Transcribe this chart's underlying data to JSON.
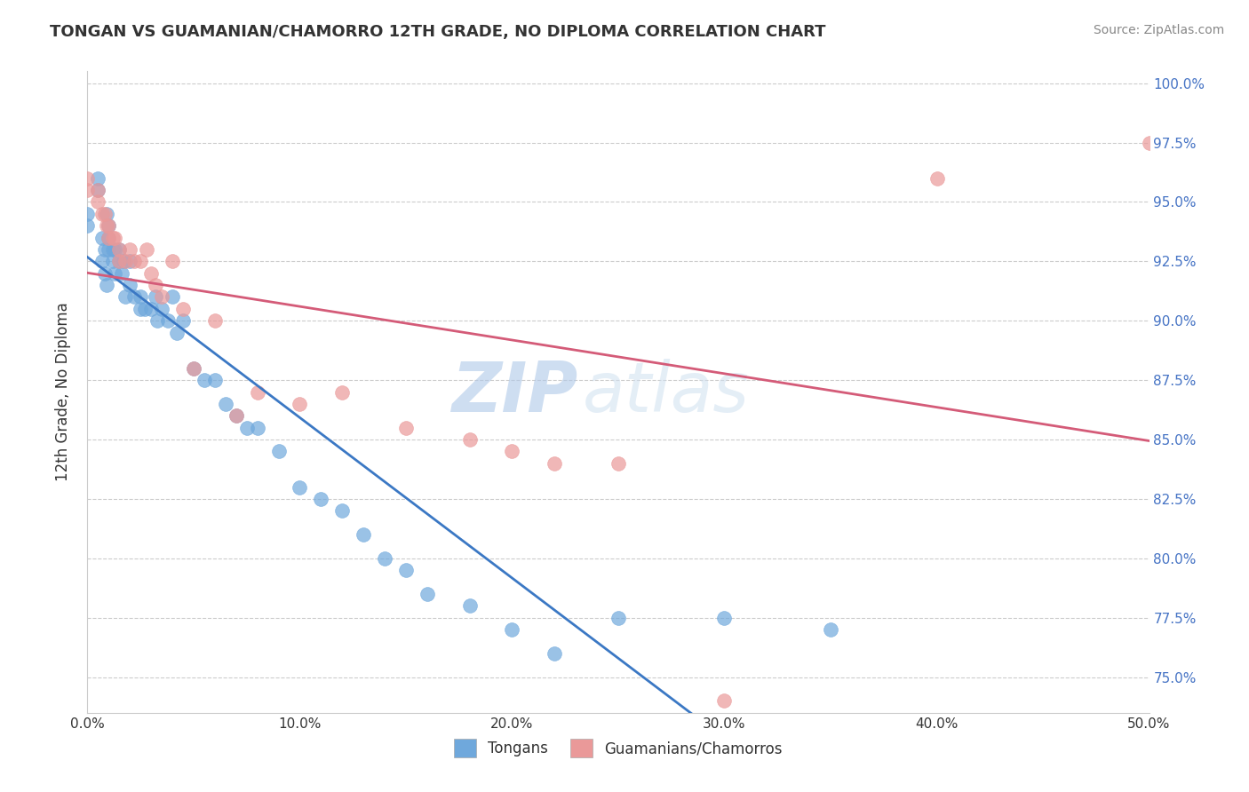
{
  "title": "TONGAN VS GUAMANIAN/CHAMORRO 12TH GRADE, NO DIPLOMA CORRELATION CHART",
  "source": "Source: ZipAtlas.com",
  "ylabel_label": "12th Grade, No Diploma",
  "xlim": [
    0.0,
    0.5
  ],
  "ylim": [
    0.735,
    1.005
  ],
  "color_tongan": "#6fa8dc",
  "color_guam": "#ea9999",
  "color_tongan_line": "#3b78c4",
  "color_guam_line": "#d45b78",
  "tongan_x": [
    0.0,
    0.0,
    0.005,
    0.005,
    0.007,
    0.007,
    0.008,
    0.008,
    0.009,
    0.009,
    0.01,
    0.01,
    0.01,
    0.012,
    0.012,
    0.013,
    0.013,
    0.015,
    0.015,
    0.016,
    0.017,
    0.018,
    0.02,
    0.02,
    0.022,
    0.025,
    0.025,
    0.027,
    0.03,
    0.032,
    0.033,
    0.035,
    0.038,
    0.04,
    0.042,
    0.045,
    0.05,
    0.055,
    0.06,
    0.065,
    0.07,
    0.075,
    0.08,
    0.09,
    0.1,
    0.11,
    0.12,
    0.13,
    0.14,
    0.15,
    0.16,
    0.18,
    0.2,
    0.22,
    0.25,
    0.3,
    0.35
  ],
  "tongan_y": [
    0.945,
    0.94,
    0.955,
    0.96,
    0.935,
    0.925,
    0.92,
    0.93,
    0.945,
    0.915,
    0.935,
    0.93,
    0.94,
    0.93,
    0.925,
    0.93,
    0.92,
    0.925,
    0.93,
    0.92,
    0.925,
    0.91,
    0.925,
    0.915,
    0.91,
    0.905,
    0.91,
    0.905,
    0.905,
    0.91,
    0.9,
    0.905,
    0.9,
    0.91,
    0.895,
    0.9,
    0.88,
    0.875,
    0.875,
    0.865,
    0.86,
    0.855,
    0.855,
    0.845,
    0.83,
    0.825,
    0.82,
    0.81,
    0.8,
    0.795,
    0.785,
    0.78,
    0.77,
    0.76,
    0.775,
    0.775,
    0.77
  ],
  "guam_x": [
    0.0,
    0.0,
    0.005,
    0.005,
    0.007,
    0.008,
    0.009,
    0.01,
    0.01,
    0.012,
    0.013,
    0.015,
    0.015,
    0.018,
    0.02,
    0.022,
    0.025,
    0.028,
    0.03,
    0.032,
    0.035,
    0.04,
    0.045,
    0.05,
    0.06,
    0.07,
    0.08,
    0.1,
    0.12,
    0.15,
    0.18,
    0.2,
    0.22,
    0.25,
    0.3,
    0.4,
    0.5
  ],
  "guam_y": [
    0.955,
    0.96,
    0.955,
    0.95,
    0.945,
    0.945,
    0.94,
    0.94,
    0.935,
    0.935,
    0.935,
    0.93,
    0.925,
    0.925,
    0.93,
    0.925,
    0.925,
    0.93,
    0.92,
    0.915,
    0.91,
    0.925,
    0.905,
    0.88,
    0.9,
    0.86,
    0.87,
    0.865,
    0.87,
    0.855,
    0.85,
    0.845,
    0.84,
    0.84,
    0.74,
    0.96,
    0.975
  ]
}
